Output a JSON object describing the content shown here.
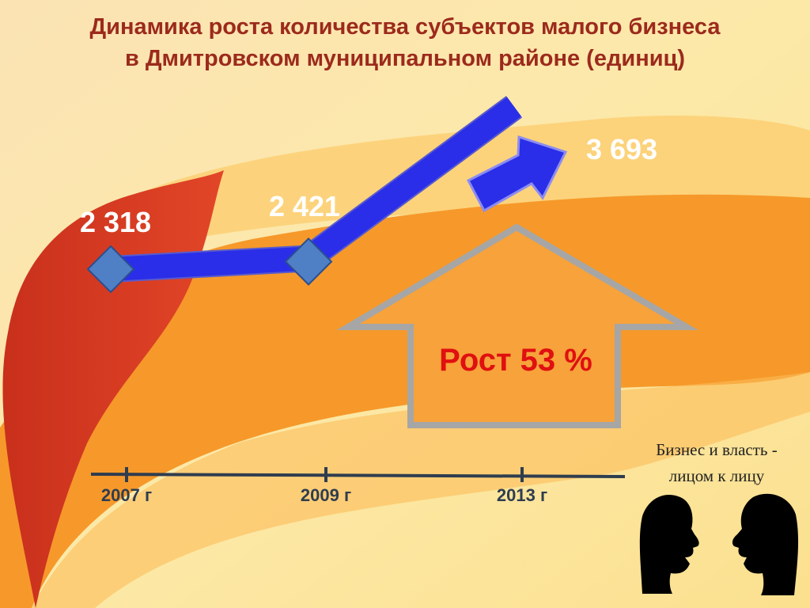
{
  "slide": {
    "title_line1": "Динамика роста количества субъектов малого бизнеса",
    "title_line2": "в Дмитровском муниципальном районе (единиц)",
    "growth_label": "Рост 53 %",
    "motto_line1": "Бизнес и власть -",
    "motto_line2": "лицом к лицу",
    "colors": {
      "title": "#9c2a1c",
      "arrow": "#2a2ee8",
      "marker": "#4f7fc4",
      "growth_text": "#e01010",
      "value_text": "#ffffff",
      "axis": "#2f3d4f"
    },
    "icons": [
      "up-arrow-outline-icon",
      "two-faces-silhouette-icon"
    ]
  },
  "chart_data": {
    "type": "line",
    "categories": [
      "2007 г",
      "2009 г",
      "2013 г"
    ],
    "values": [
      2318,
      2421,
      3693
    ],
    "value_labels": [
      "2 318",
      "2 421",
      "3 693"
    ],
    "ylabel": "",
    "xlabel": "",
    "grid": false,
    "legend": "none"
  }
}
